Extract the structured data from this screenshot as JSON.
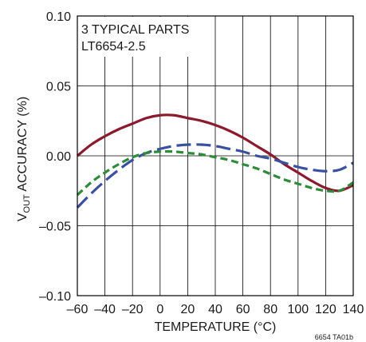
{
  "chart_data": {
    "type": "line",
    "annotation_lines": [
      "3 TYPICAL PARTS",
      "LT6654-2.5"
    ],
    "xlabel": "TEMPERATURE (°C)",
    "ylabel_main": "V",
    "ylabel_sub": "OUT",
    "ylabel_rest": " ACCURACY (%)",
    "xlim": [
      -60,
      140
    ],
    "ylim": [
      -0.1,
      0.1
    ],
    "x_ticks": [
      -60,
      -40,
      -20,
      0,
      20,
      40,
      60,
      80,
      100,
      120,
      140
    ],
    "x_tick_labels": [
      "–60",
      "–40",
      "–20",
      "0",
      "20",
      "40",
      "60",
      "80",
      "100",
      "120",
      "140"
    ],
    "y_ticks": [
      -0.1,
      -0.05,
      0.0,
      0.05,
      0.1
    ],
    "y_tick_labels": [
      "–0.10",
      "–0.05",
      "0.00",
      "0.05",
      "0.10"
    ],
    "grid": "vertical and horizontal at each tick",
    "figure_code": "6654 TA01b",
    "series": [
      {
        "color": "#8b1a2e",
        "style": "solid",
        "x": [
          -60,
          -50,
          -40,
          -30,
          -20,
          -10,
          0,
          10,
          20,
          30,
          40,
          50,
          60,
          70,
          80,
          90,
          100,
          110,
          120,
          130,
          140
        ],
        "y": [
          0.0,
          0.008,
          0.014,
          0.019,
          0.023,
          0.027,
          0.029,
          0.029,
          0.027,
          0.025,
          0.022,
          0.018,
          0.013,
          0.007,
          0.001,
          -0.006,
          -0.012,
          -0.018,
          -0.023,
          -0.025,
          -0.021
        ]
      },
      {
        "color": "#3a4fa0",
        "style": "long-dash",
        "x": [
          -60,
          -50,
          -40,
          -30,
          -20,
          -10,
          0,
          10,
          20,
          30,
          40,
          50,
          60,
          70,
          80,
          90,
          100,
          110,
          120,
          130,
          140
        ],
        "y": [
          -0.037,
          -0.027,
          -0.018,
          -0.01,
          -0.003,
          0.002,
          0.005,
          0.007,
          0.008,
          0.008,
          0.007,
          0.005,
          0.003,
          0.0,
          -0.002,
          -0.005,
          -0.008,
          -0.01,
          -0.011,
          -0.01,
          -0.005
        ]
      },
      {
        "color": "#2e8b3a",
        "style": "short-dash",
        "x": [
          -60,
          -50,
          -40,
          -30,
          -20,
          -10,
          0,
          10,
          20,
          30,
          40,
          50,
          60,
          70,
          80,
          90,
          100,
          110,
          120,
          130,
          140
        ],
        "y": [
          -0.028,
          -0.019,
          -0.012,
          -0.006,
          -0.001,
          0.002,
          0.003,
          0.003,
          0.002,
          0.001,
          -0.001,
          -0.003,
          -0.006,
          -0.009,
          -0.013,
          -0.017,
          -0.02,
          -0.023,
          -0.025,
          -0.025,
          -0.019
        ]
      }
    ]
  }
}
